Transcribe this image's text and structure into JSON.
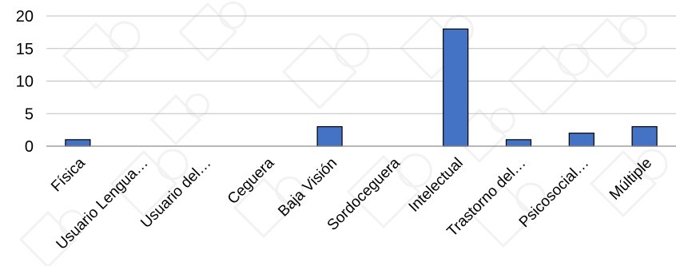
{
  "chart_data": {
    "type": "bar",
    "categories": [
      "Física",
      "Usuario Lengua…",
      "Usuario del…",
      "Ceguera",
      "Baja Visión",
      "Sordoceguera",
      "Intelectual",
      "Trastorno del…",
      "Psicosocial…",
      "Múltiple"
    ],
    "values": [
      1,
      0,
      0,
      0,
      3,
      0,
      18,
      1,
      2,
      3
    ],
    "ylim": [
      0,
      20
    ],
    "yticks": [
      0,
      5,
      10,
      15,
      20
    ],
    "grid": true,
    "legend": "none",
    "bar_color": "#4472c4",
    "bar_border_color": "#000000",
    "title": "",
    "xlabel": "",
    "ylabel": ""
  }
}
